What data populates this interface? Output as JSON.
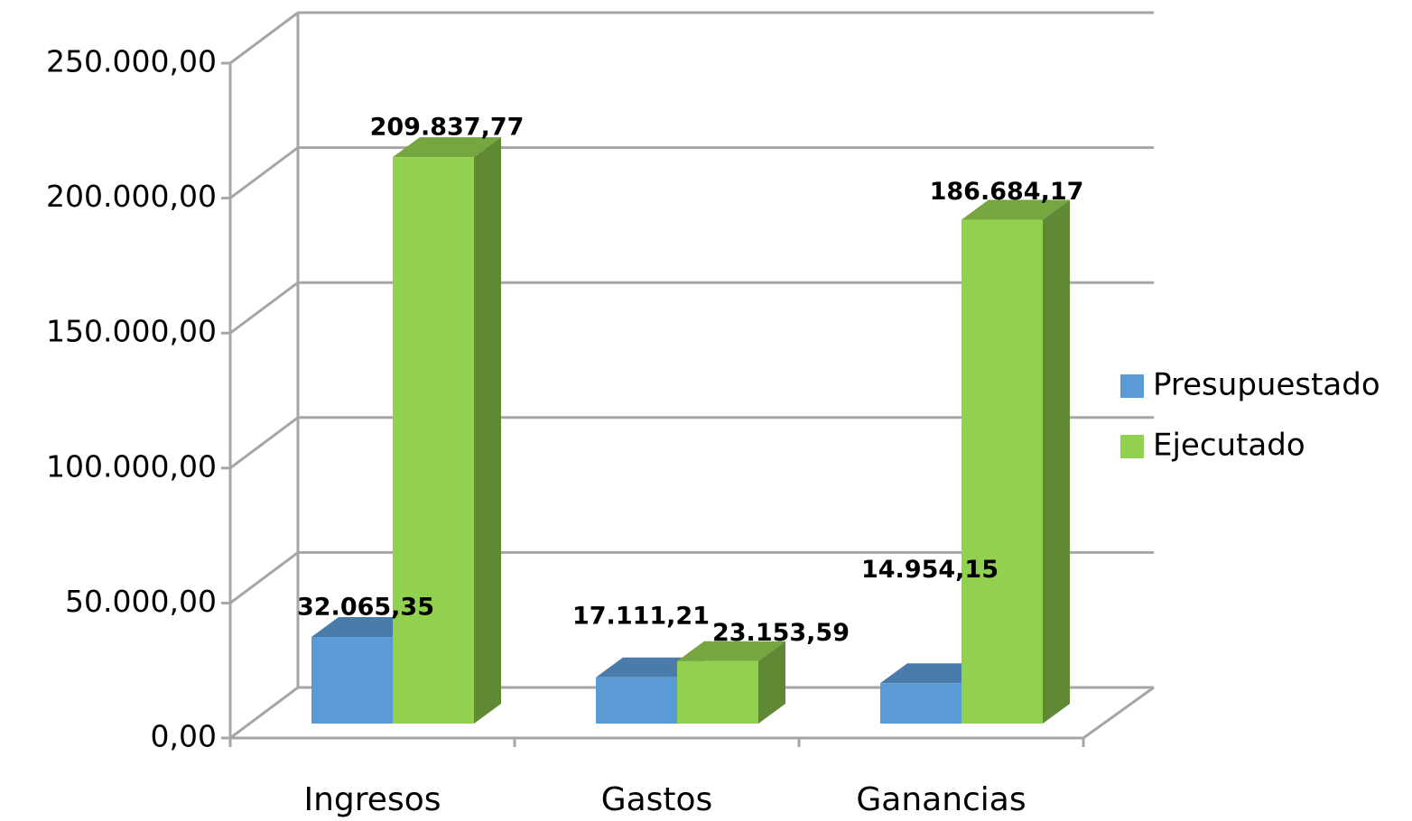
{
  "chart_data": {
    "type": "bar3d",
    "categories": [
      "Ingresos",
      "Gastos",
      "Ganancias"
    ],
    "series": [
      {
        "name": "Presupuestado",
        "color": "#5b9bd5",
        "values": [
          32065.35,
          17111.21,
          14954.15
        ],
        "value_labels": [
          "32.065,35",
          "17.111,21",
          "14.954,15"
        ]
      },
      {
        "name": "Ejecutado",
        "color": "#92d050",
        "values": [
          209837.77,
          23153.59,
          186684.17
        ],
        "value_labels": [
          "209.837,77",
          "23.153,59",
          "186.684,17"
        ]
      }
    ],
    "ylim": [
      0,
      250000
    ],
    "yticks": [
      {
        "value": 0,
        "label": "0,00"
      },
      {
        "value": 50000,
        "label": "50.000,00"
      },
      {
        "value": 100000,
        "label": "100.000,00"
      },
      {
        "value": 150000,
        "label": "150.000,00"
      },
      {
        "value": 200000,
        "label": "200.000,00"
      },
      {
        "value": 250000,
        "label": "250.000,00"
      }
    ],
    "grid": true,
    "legend": "right"
  }
}
